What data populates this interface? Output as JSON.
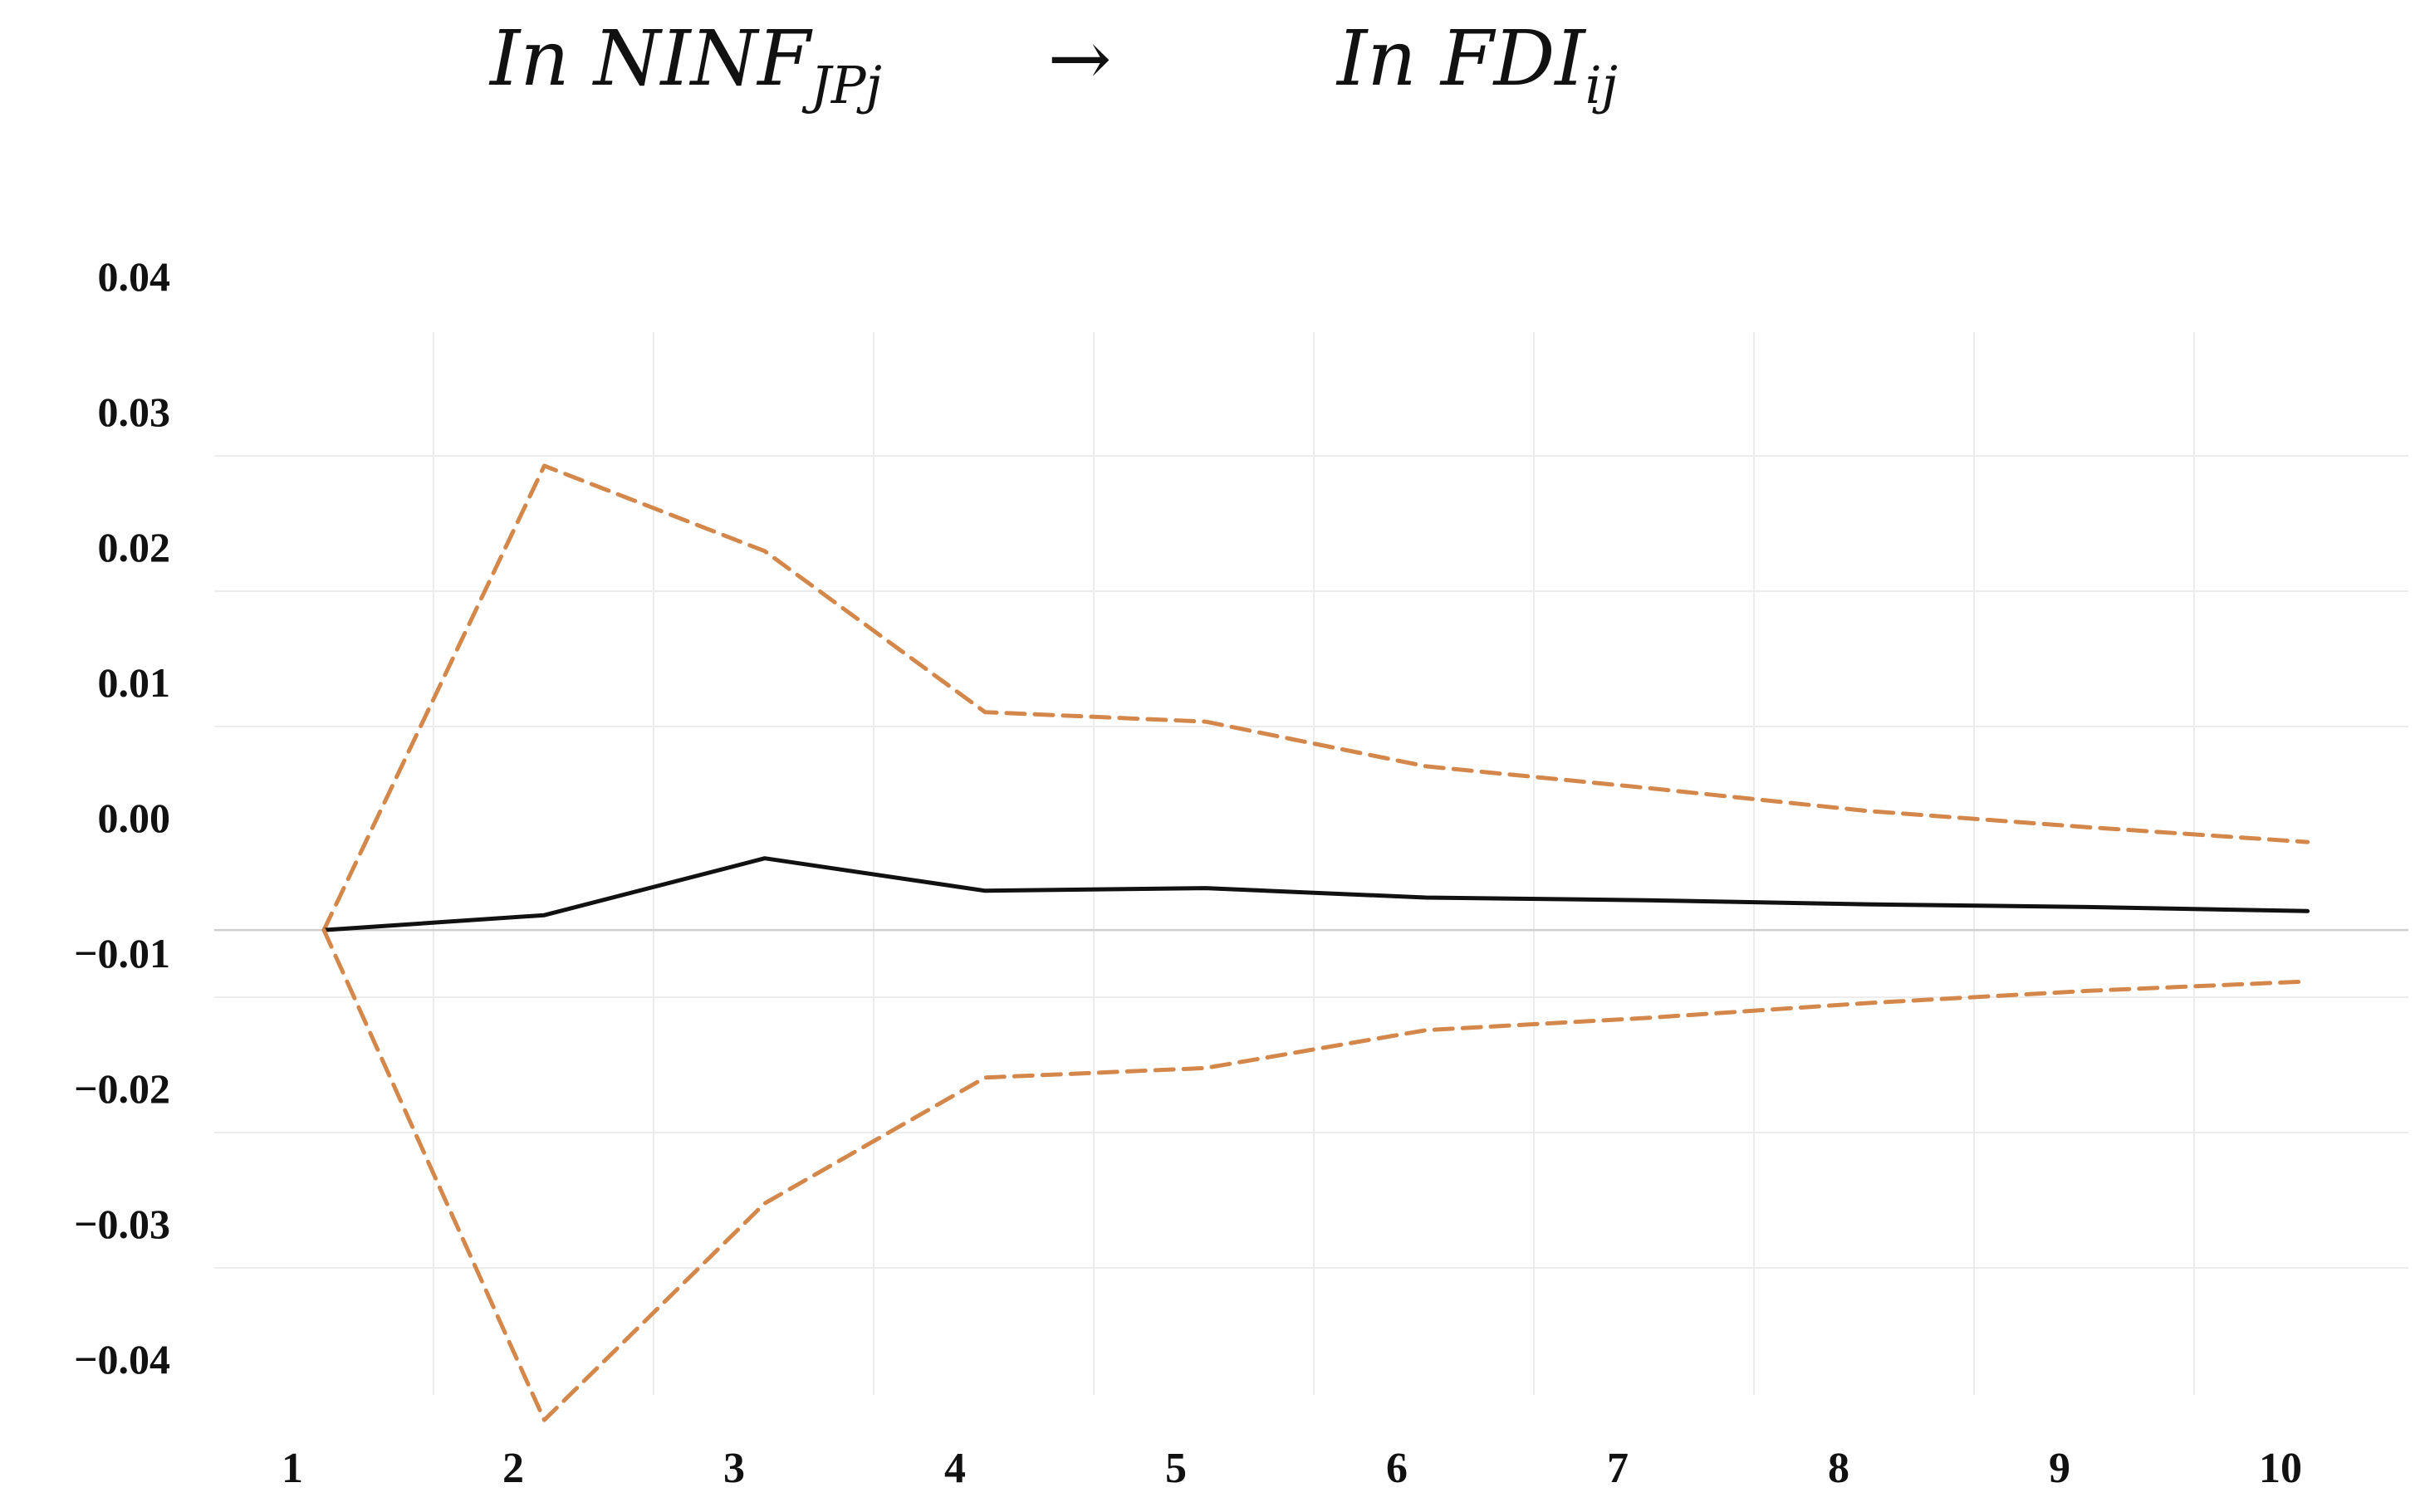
{
  "chart_data": {
    "type": "line",
    "title": {
      "left": "In NINF",
      "left_sub": "JPj",
      "arrow": "→",
      "right": "In FDI",
      "right_sub": "ij"
    },
    "x": [
      1,
      2,
      3,
      4,
      5,
      6,
      7,
      8,
      9,
      10
    ],
    "x_tick_labels": [
      "1",
      "2",
      "3",
      "4",
      "5",
      "6",
      "7",
      "8",
      "9",
      "10"
    ],
    "y_tick_values": [
      0.04,
      0.03,
      0.02,
      0.01,
      0.0,
      -0.01,
      -0.02,
      -0.03,
      -0.04
    ],
    "y_tick_labels": [
      "0.04",
      "0.03",
      "0.02",
      "0.01",
      "0.00",
      "−0.01",
      "−0.02",
      "−0.03",
      "−0.04"
    ],
    "ylim": [
      -0.0445,
      0.0398
    ],
    "grid": true,
    "series": [
      {
        "role": "upper",
        "style": "dashed",
        "color": "#D4874A",
        "values": [
          -0.0043,
          0.03,
          0.0237,
          0.0118,
          0.0111,
          0.0078,
          0.0062,
          0.0045,
          0.0033,
          0.0022
        ]
      },
      {
        "role": "response",
        "style": "solid",
        "color": "#111111",
        "values": [
          -0.0043,
          -0.0032,
          0.001,
          -0.0014,
          -0.0012,
          -0.0019,
          -0.0021,
          -0.0024,
          -0.0026,
          -0.0029
        ]
      },
      {
        "role": "lower",
        "style": "dashed",
        "color": "#D4874A",
        "values": [
          -0.0043,
          -0.0405,
          -0.0245,
          -0.0152,
          -0.0145,
          -0.0117,
          -0.0108,
          -0.0097,
          -0.0088,
          -0.0081
        ]
      }
    ]
  }
}
